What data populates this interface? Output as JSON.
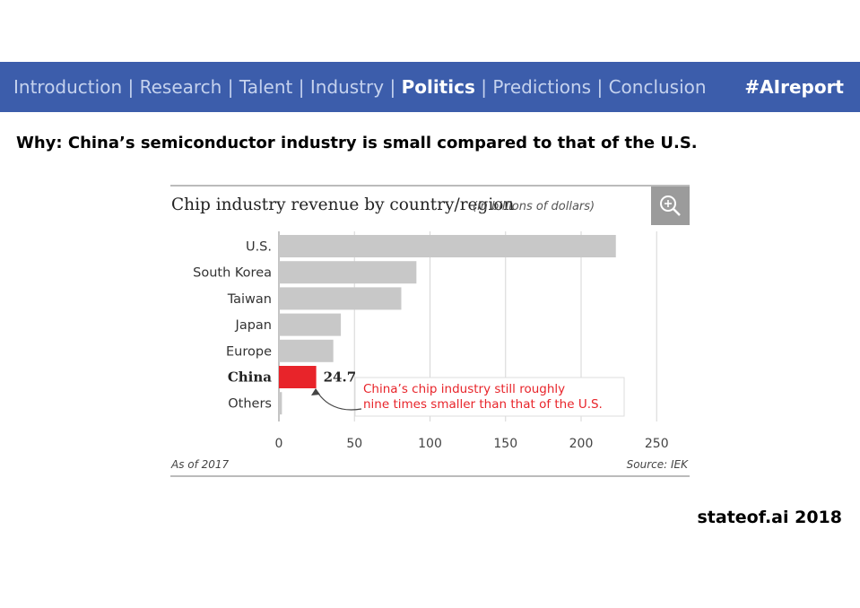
{
  "nav": {
    "items": [
      {
        "label": "Introduction",
        "active": false
      },
      {
        "label": "Research",
        "active": false
      },
      {
        "label": "Talent",
        "active": false
      },
      {
        "label": "Industry",
        "active": false
      },
      {
        "label": "Politics",
        "active": true
      },
      {
        "label": "Predictions",
        "active": false
      },
      {
        "label": "Conclusion",
        "active": false
      }
    ],
    "separator": "|",
    "hashtag": "#AIreport"
  },
  "headline": "Why: China’s semiconductor industry is small compared to that of the U.S.",
  "footer": "stateof.ai 2018",
  "colors": {
    "nav_bg": "#3c5dab",
    "bar": "#c8c8c8",
    "highlight_bar": "#e8242a",
    "annotation": "#e8242a"
  },
  "chart_data": {
    "type": "bar",
    "orientation": "horizontal",
    "title": "Chip industry revenue by country/region",
    "subtitle": "(in billions of dollars)",
    "categories": [
      "U.S.",
      "South Korea",
      "Taiwan",
      "Japan",
      "Europe",
      "China",
      "Others"
    ],
    "values": [
      223,
      91,
      81,
      41,
      36,
      24.7,
      2
    ],
    "highlight": "China",
    "highlight_value_label": "24.7",
    "annotation": [
      "China’s chip industry still roughly",
      "nine times smaller than that of the U.S."
    ],
    "xticks": [
      "0",
      "50",
      "100",
      "150",
      "200",
      "250"
    ],
    "xlim": [
      0,
      250
    ],
    "grid": true,
    "note_left": "As of 2017",
    "note_right": "Source: IEK",
    "zoom_icon": "magnifier-plus-icon"
  }
}
